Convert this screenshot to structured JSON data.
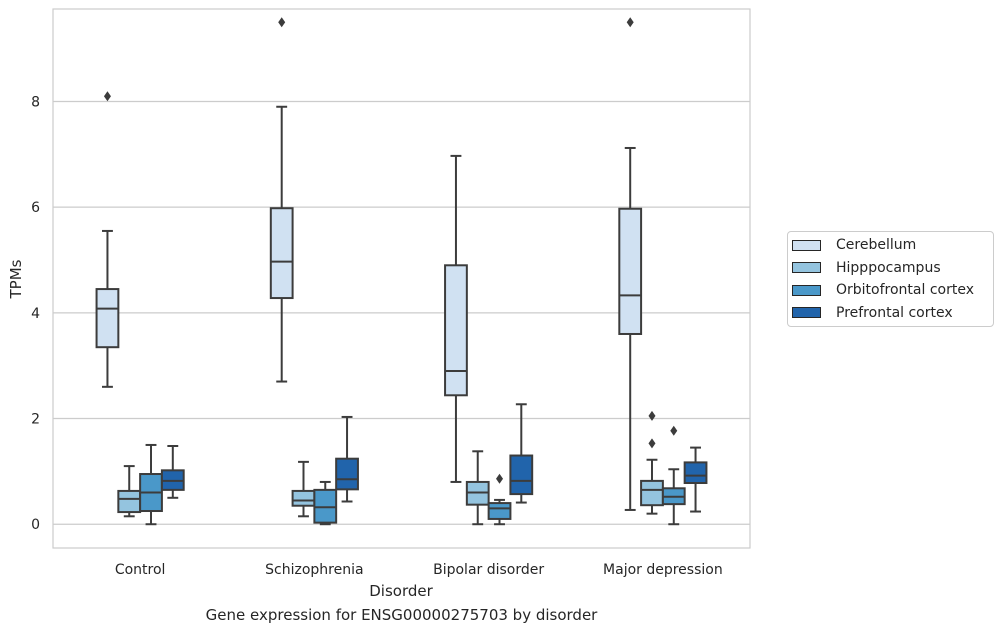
{
  "chart_data": {
    "type": "box",
    "xlabel": "Disorder",
    "ylabel": "TPMs",
    "categories": [
      "Control",
      "Schizophrenia",
      "Bipolar disorder",
      "Major depression"
    ],
    "y_ticks": [
      0,
      2,
      4,
      6,
      8
    ],
    "ylim": [
      -0.45,
      9.75
    ],
    "grid": "horizontal",
    "legend_position": "right",
    "series": [
      {
        "name": "Cerebellum",
        "color": "#d0e1f2",
        "boxes": [
          {
            "whisker_low": 2.6,
            "q1": 3.35,
            "median": 4.08,
            "q3": 4.45,
            "whisker_high": 5.55,
            "outliers": [
              8.1
            ]
          },
          {
            "whisker_low": 2.7,
            "q1": 4.28,
            "median": 4.97,
            "q3": 5.98,
            "whisker_high": 7.9,
            "outliers": [
              9.5
            ]
          },
          {
            "whisker_low": 0.8,
            "q1": 2.44,
            "median": 2.9,
            "q3": 4.9,
            "whisker_high": 6.97,
            "outliers": []
          },
          {
            "whisker_low": 0.27,
            "q1": 3.6,
            "median": 4.33,
            "q3": 5.97,
            "whisker_high": 7.12,
            "outliers": [
              9.5
            ]
          }
        ]
      },
      {
        "name": "Hipppocampus",
        "color": "#94c4df",
        "boxes": [
          {
            "whisker_low": 0.15,
            "q1": 0.23,
            "median": 0.48,
            "q3": 0.63,
            "whisker_high": 1.1,
            "outliers": []
          },
          {
            "whisker_low": 0.15,
            "q1": 0.35,
            "median": 0.45,
            "q3": 0.63,
            "whisker_high": 1.18,
            "outliers": []
          },
          {
            "whisker_low": 0.0,
            "q1": 0.37,
            "median": 0.6,
            "q3": 0.8,
            "whisker_high": 1.38,
            "outliers": []
          },
          {
            "whisker_low": 0.2,
            "q1": 0.36,
            "median": 0.65,
            "q3": 0.82,
            "whisker_high": 1.22,
            "outliers": [
              1.53,
              2.05
            ]
          }
        ]
      },
      {
        "name": "Orbitofrontal cortex",
        "color": "#4a98c9",
        "boxes": [
          {
            "whisker_low": 0.0,
            "q1": 0.25,
            "median": 0.6,
            "q3": 0.95,
            "whisker_high": 1.5,
            "outliers": []
          },
          {
            "whisker_low": 0.0,
            "q1": 0.03,
            "median": 0.32,
            "q3": 0.65,
            "whisker_high": 0.8,
            "outliers": []
          },
          {
            "whisker_low": 0.0,
            "q1": 0.1,
            "median": 0.3,
            "q3": 0.4,
            "whisker_high": 0.46,
            "outliers": [
              0.86
            ]
          },
          {
            "whisker_low": 0.0,
            "q1": 0.38,
            "median": 0.52,
            "q3": 0.68,
            "whisker_high": 1.04,
            "outliers": [
              1.77
            ]
          }
        ]
      },
      {
        "name": "Prefrontal cortex",
        "color": "#2164ab",
        "boxes": [
          {
            "whisker_low": 0.5,
            "q1": 0.65,
            "median": 0.82,
            "q3": 1.02,
            "whisker_high": 1.48,
            "outliers": []
          },
          {
            "whisker_low": 0.43,
            "q1": 0.66,
            "median": 0.85,
            "q3": 1.24,
            "whisker_high": 2.03,
            "outliers": []
          },
          {
            "whisker_low": 0.41,
            "q1": 0.57,
            "median": 0.82,
            "q3": 1.3,
            "whisker_high": 2.27,
            "outliers": []
          },
          {
            "whisker_low": 0.24,
            "q1": 0.78,
            "median": 0.92,
            "q3": 1.17,
            "whisker_high": 1.45,
            "outliers": []
          }
        ]
      }
    ]
  },
  "figure": {
    "caption": "Gene expression for ENSG00000275703 by disorder"
  }
}
